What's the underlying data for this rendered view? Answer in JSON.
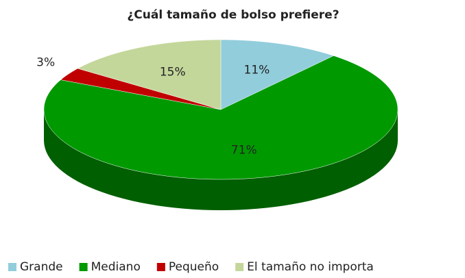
{
  "chart_data": {
    "type": "pie3d",
    "title": "¿Cuál tamaño de bolso prefiere?",
    "categories": [
      "Grande",
      "Mediano",
      "Pequeño",
      "El tamaño no importa"
    ],
    "values": [
      11,
      71,
      3,
      15
    ],
    "value_labels": [
      "11%",
      "71%",
      "3%",
      "15%"
    ],
    "colors": [
      "#92cddc",
      "#009900",
      "#c00000",
      "#c4d79b"
    ],
    "legend": "bottom"
  }
}
